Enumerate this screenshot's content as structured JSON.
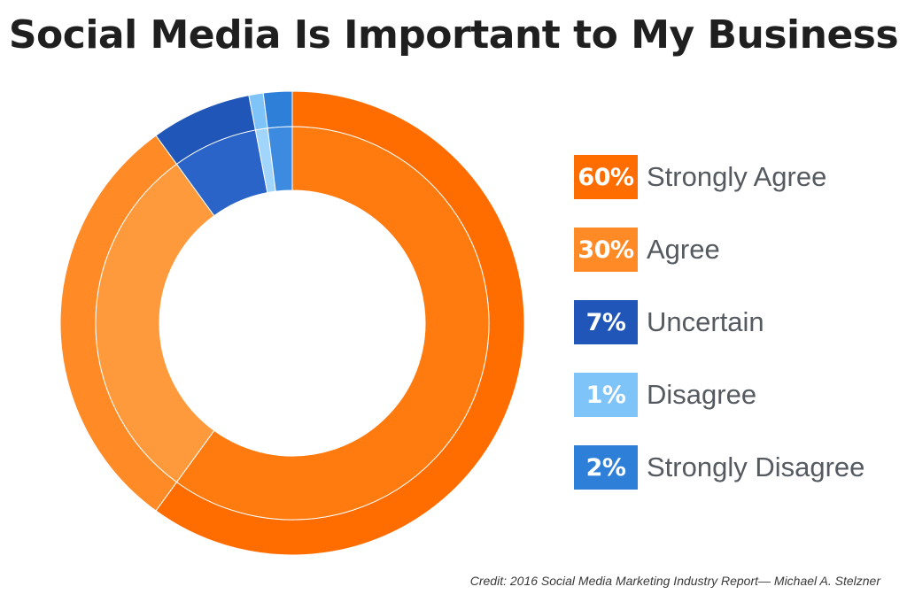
{
  "chart_data": {
    "type": "pie",
    "title": "Social Media Is Important to My Business",
    "categories": [
      "Strongly Agree",
      "Agree",
      "Uncertain",
      "Disagree",
      "Strongly Disagree"
    ],
    "values": [
      60,
      30,
      7,
      1,
      2
    ],
    "value_labels": [
      "60%",
      "30%",
      "7%",
      "1%",
      "2%"
    ],
    "colors": [
      "#ff6d00",
      "#ff8a26",
      "#1f56b8",
      "#7fc4f8",
      "#2e7fd8"
    ],
    "inner_colors": [
      "#ff7b0f",
      "#ff9a3c",
      "#2a64c8",
      "#a2d5fb",
      "#3d8be0"
    ],
    "legend_position": "right",
    "donut": true
  },
  "credit": "Credit: 2016 Social Media Marketing Industry Report— Michael A. Stelzner"
}
